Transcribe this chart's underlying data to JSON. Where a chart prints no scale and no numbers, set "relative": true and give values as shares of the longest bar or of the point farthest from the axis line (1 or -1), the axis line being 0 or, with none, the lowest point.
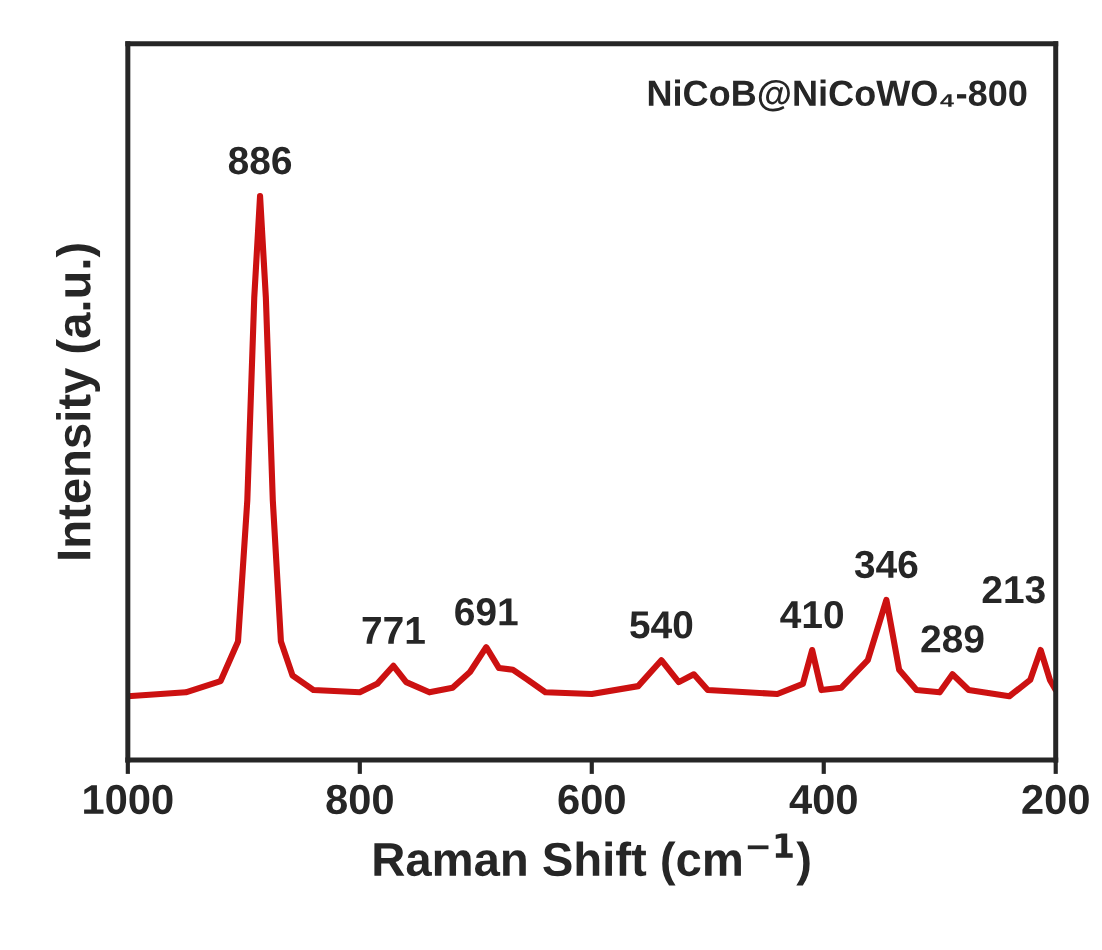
{
  "chart_data": {
    "type": "line",
    "title": "NiCoB@NiCoWO₄-800",
    "xlabel": "Raman Shift (cm$^{−1}$)",
    "ylabel": "Intensity (a.u.)",
    "relative": true,
    "xlim": [
      1000,
      200
    ],
    "xticks": [
      1000,
      800,
      600,
      400,
      200
    ],
    "grid": false,
    "legend": false,
    "marker": "none",
    "line_style": "solid",
    "series": [
      {
        "color": "#cc1111",
        "x": [
          1000,
          950,
          920,
          905,
          897,
          891,
          886,
          881,
          875,
          868,
          858,
          840,
          800,
          785,
          771,
          760,
          740,
          720,
          705,
          691,
          680,
          668,
          655,
          640,
          600,
          560,
          540,
          525,
          512,
          500,
          440,
          418,
          410,
          402,
          385,
          362,
          346,
          335,
          320,
          300,
          289,
          275,
          240,
          222,
          213,
          205,
          200
        ],
        "values": [
          0.113,
          0.12,
          0.14,
          0.21,
          0.46,
          0.82,
          1.0,
          0.82,
          0.46,
          0.21,
          0.15,
          0.124,
          0.12,
          0.135,
          0.167,
          0.138,
          0.12,
          0.128,
          0.156,
          0.2,
          0.163,
          0.16,
          0.142,
          0.12,
          0.117,
          0.131,
          0.177,
          0.138,
          0.152,
          0.124,
          0.117,
          0.135,
          0.195,
          0.124,
          0.128,
          0.177,
          0.284,
          0.16,
          0.124,
          0.12,
          0.152,
          0.124,
          0.113,
          0.142,
          0.195,
          0.142,
          0.124
        ]
      }
    ],
    "annotations": [
      {
        "text": "886",
        "x": 886,
        "y": 1.0
      },
      {
        "text": "771",
        "x": 771,
        "y": 0.167
      },
      {
        "text": "691",
        "x": 691,
        "y": 0.2
      },
      {
        "text": "540",
        "x": 540,
        "y": 0.177
      },
      {
        "text": "410",
        "x": 410,
        "y": 0.195
      },
      {
        "text": "346",
        "x": 346,
        "y": 0.284
      },
      {
        "text": "289",
        "x": 289,
        "y": 0.152
      },
      {
        "text": "213",
        "x": 213,
        "y": 0.195
      }
    ]
  }
}
